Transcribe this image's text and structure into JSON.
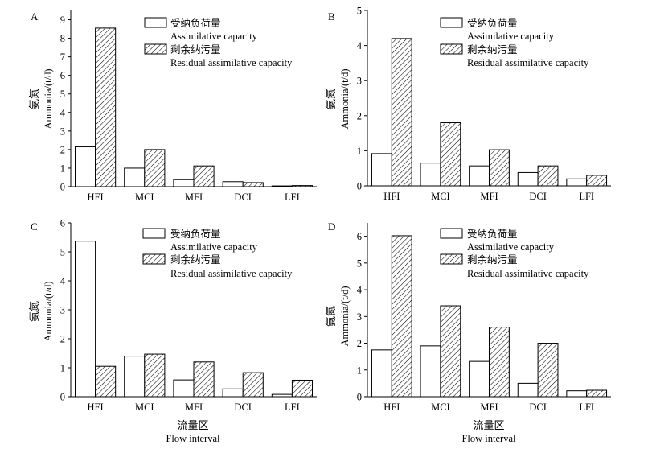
{
  "shared": {
    "legend": {
      "open_cn": "受纳负荷量",
      "open_en": "Assimilative capacity",
      "hatched_cn": "剩余纳污量",
      "hatched_en": "Residual assimilative capacity"
    },
    "ylabel_cn": "氨氮",
    "ylabel_en": "Ammonia/(t/d)",
    "xlabel_cn": "流量区",
    "xlabel_en": "Flow interval",
    "categories": [
      "HFI",
      "MCI",
      "MFI",
      "DCI",
      "LFI"
    ],
    "colors": {
      "axis": "#000000",
      "bar_fill": "#ffffff",
      "hatch": "#000000"
    }
  },
  "chart_data": [
    {
      "panel": "A",
      "type": "bar",
      "title": "",
      "categories": [
        "HFI",
        "MCI",
        "MFI",
        "DCI",
        "LFI"
      ],
      "ylim": [
        0,
        9.5
      ],
      "yticks": [
        0,
        1,
        2,
        3,
        4,
        5,
        6,
        7,
        8,
        9
      ],
      "xlabel": "",
      "ylabel": "氨氮 Ammonia/(t/d)",
      "series": [
        {
          "name": "受纳负荷量 Assimilative capacity",
          "values": [
            2.15,
            1.0,
            0.38,
            0.27,
            0.04
          ]
        },
        {
          "name": "剩余纳污量 Residual assimilative capacity",
          "values": [
            8.55,
            2.0,
            1.12,
            0.22,
            0.06
          ]
        }
      ]
    },
    {
      "panel": "B",
      "type": "bar",
      "title": "",
      "categories": [
        "HFI",
        "MCI",
        "MFI",
        "DCI",
        "LFI"
      ],
      "ylim": [
        0,
        5
      ],
      "yticks": [
        0,
        1,
        2,
        3,
        4,
        5
      ],
      "xlabel": "",
      "ylabel": "氨氮 Ammonia/(t/d)",
      "series": [
        {
          "name": "受纳负荷量 Assimilative capacity",
          "values": [
            0.92,
            0.65,
            0.57,
            0.38,
            0.2
          ]
        },
        {
          "name": "剩余纳污量 Residual assimilative capacity",
          "values": [
            4.2,
            1.8,
            1.03,
            0.57,
            0.3
          ]
        }
      ]
    },
    {
      "panel": "C",
      "type": "bar",
      "title": "",
      "categories": [
        "HFI",
        "MCI",
        "MFI",
        "DCI",
        "LFI"
      ],
      "ylim": [
        0,
        6
      ],
      "yticks": [
        0,
        1,
        2,
        3,
        4,
        5,
        6
      ],
      "xlabel": "流量区 Flow interval",
      "ylabel": "氨氮 Ammonia/(t/d)",
      "series": [
        {
          "name": "受纳负荷量 Assimilative capacity",
          "values": [
            5.37,
            1.4,
            0.58,
            0.27,
            0.08
          ]
        },
        {
          "name": "剩余纳污量 Residual assimilative capacity",
          "values": [
            1.05,
            1.47,
            1.2,
            0.83,
            0.57
          ]
        }
      ]
    },
    {
      "panel": "D",
      "type": "bar",
      "title": "",
      "categories": [
        "HFI",
        "MCI",
        "MFI",
        "DCI",
        "LFI"
      ],
      "ylim": [
        0,
        6.5
      ],
      "yticks": [
        0,
        1,
        2,
        3,
        4,
        5,
        6
      ],
      "xlabel": "流量区 Flow interval",
      "ylabel": "氨氮 Ammonia/(t/d)",
      "series": [
        {
          "name": "受纳负荷量 Assimilative capacity",
          "values": [
            1.75,
            1.9,
            1.32,
            0.5,
            0.22
          ]
        },
        {
          "name": "剩余纳污量 Residual assimilative capacity",
          "values": [
            6.02,
            3.4,
            2.6,
            2.0,
            0.24
          ]
        }
      ]
    }
  ]
}
